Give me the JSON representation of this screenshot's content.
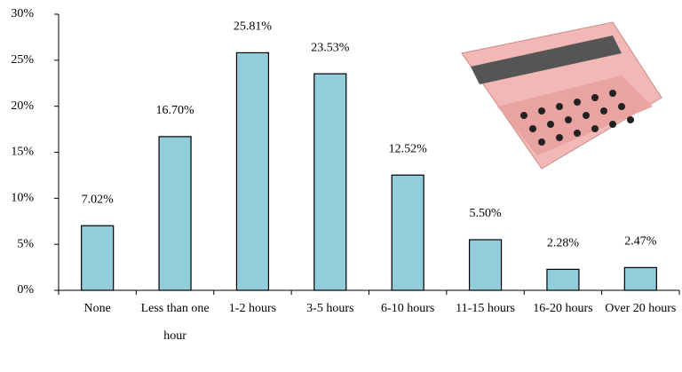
{
  "chart_data": {
    "type": "bar",
    "categories": [
      "None",
      "Less than one hour",
      "1-2 hours",
      "3-5 hours",
      "6-10 hours",
      "11-15 hours",
      "16-20 hours",
      "Over 20 hours"
    ],
    "values": [
      7.02,
      16.7,
      25.81,
      23.53,
      12.52,
      5.5,
      2.28,
      2.47
    ],
    "value_labels": [
      "7.02%",
      "16.70%",
      "25.81%",
      "23.53%",
      "12.52%",
      "5.50%",
      "2.28%",
      "2.47%"
    ],
    "color": "#92cddc",
    "ylim": [
      0,
      30
    ],
    "yticks": [
      {
        "value": 0,
        "label": "0%"
      },
      {
        "value": 5,
        "label": "5%"
      },
      {
        "value": 10,
        "label": "10%"
      },
      {
        "value": 15,
        "label": "15%"
      },
      {
        "value": 20,
        "label": "20%"
      },
      {
        "value": 25,
        "label": "25%"
      },
      {
        "value": 30,
        "label": "30%"
      }
    ],
    "grid": false
  }
}
